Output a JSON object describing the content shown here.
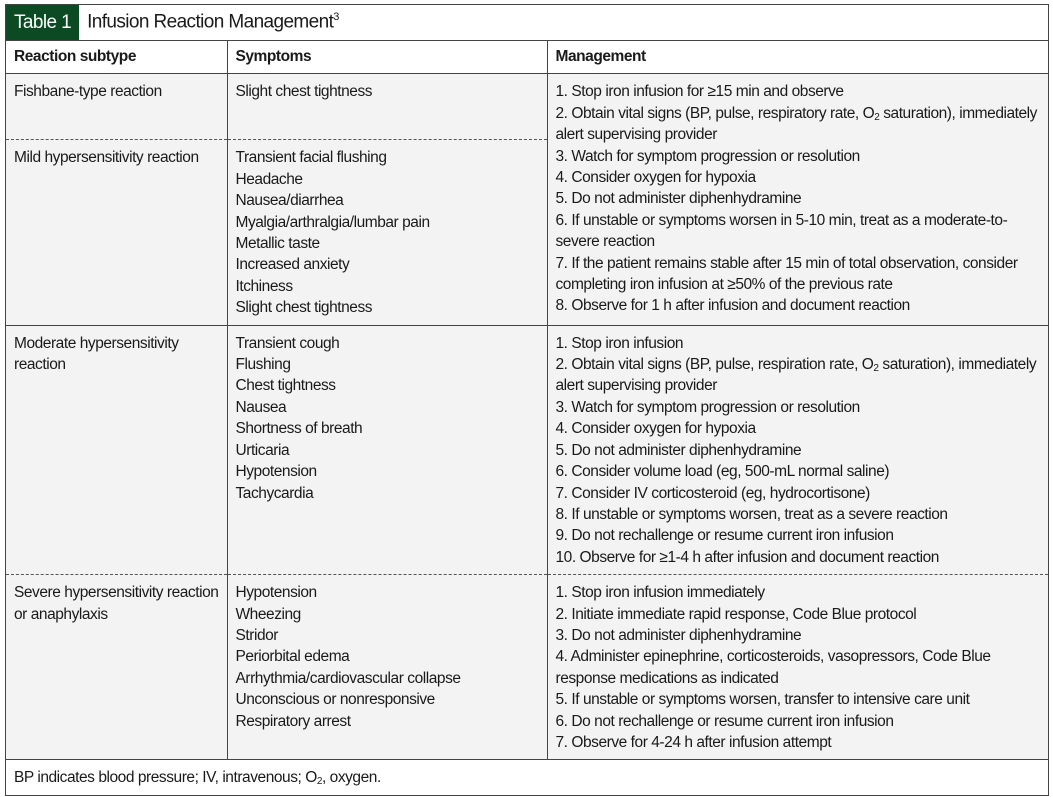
{
  "title": {
    "label": "Table 1",
    "text": "Infusion Reaction Management",
    "ref": "3"
  },
  "headers": [
    "Reaction subtype",
    "Symptoms",
    "Management"
  ],
  "rows": [
    {
      "subtype": [
        "Fishbane-type reaction"
      ],
      "symptoms": [
        "Slight chest tightness"
      ]
    },
    {
      "subtype": [
        "Mild hypersensitivity reaction"
      ],
      "symptoms": [
        "Transient facial flushing",
        "Headache",
        "Nausea/diarrhea",
        "Myalgia/arthralgia/lumbar pain",
        "Metallic taste",
        "Increased anxiety",
        "Itchiness",
        "Slight chest tightness"
      ]
    },
    {
      "subtype": [
        "Moderate hypersensitivity",
        "reaction"
      ],
      "symptoms": [
        "Transient cough",
        "Flushing",
        "Chest tightness",
        "Nausea",
        "Shortness of breath",
        "Urticaria",
        "Hypotension",
        "Tachycardia"
      ],
      "management": [
        "1. Stop iron infusion",
        "2. Obtain vital signs (BP, pulse, respiration rate, O₂ saturation), immediately",
        "alert supervising provider",
        "3. Watch for symptom progression or resolution",
        "4. Consider oxygen for hypoxia",
        "5. Do not administer diphenhydramine",
        "6. Consider volume load (eg, 500-mL normal saline)",
        "7. Consider IV corticosteroid (eg, hydrocortisone)",
        "8. If unstable or symptoms worsen, treat as a severe reaction",
        "9. Do not rechallenge or resume current iron infusion",
        "10. Observe for ≥1-4 h after infusion and document reaction"
      ]
    },
    {
      "subtype": [
        "Severe hypersensitivity reaction",
        "or anaphylaxis"
      ],
      "symptoms": [
        "Hypotension",
        "Wheezing",
        "Stridor",
        "Periorbital edema",
        "Arrhythmia/cardiovascular collapse",
        "Unconscious or nonresponsive",
        "Respiratory arrest"
      ],
      "management": [
        "1. Stop iron infusion immediately",
        "2. Initiate immediate rapid response, Code Blue protocol",
        "3. Do not administer diphenhydramine",
        "4. Administer epinephrine, corticosteroids, vasopressors, Code Blue",
        "response medications as indicated",
        "5. If unstable or symptoms worsen, transfer to intensive care unit",
        "6. Do not rechallenge or resume current iron infusion",
        "7. Observe for 4-24 h after infusion attempt"
      ]
    }
  ],
  "shared_management": [
    "1. Stop iron infusion for ≥15 min and observe",
    "2. Obtain vital signs (BP, pulse, respiratory rate, O₂ saturation), immediately",
    "alert supervising provider",
    "3. Watch for symptom progression or resolution",
    "4. Consider oxygen for hypoxia",
    "5. Do not administer diphenhydramine",
    "6. If unstable or symptoms worsen in 5-10 min, treat as a moderate-to-",
    "severe reaction",
    "7. If the patient remains stable after 15 min of total observation, consider",
    "completing iron infusion at ≥50% of the previous rate",
    "8. Observe for 1 h after infusion and document reaction"
  ],
  "footnote": "BP indicates blood pressure; IV, intravenous; O₂, oxygen.",
  "colors": {
    "title_bg": "#0b4a22",
    "cell_bg": "#f3f3f3"
  }
}
